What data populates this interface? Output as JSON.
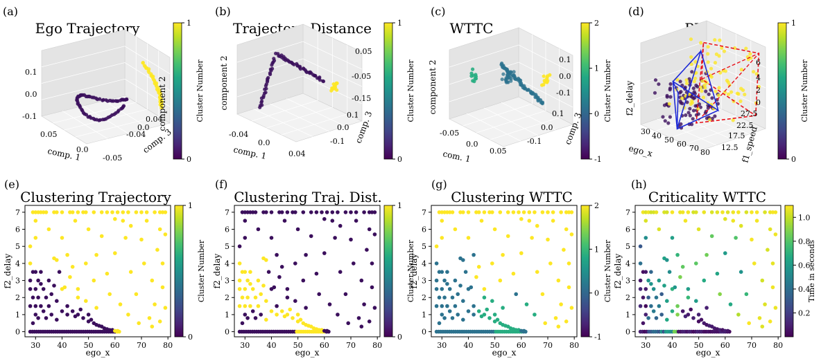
{
  "colors": {
    "viridis": [
      "#440154",
      "#482475",
      "#414487",
      "#355f8d",
      "#2a788e",
      "#21918c",
      "#22a884",
      "#44bf70",
      "#7ad151",
      "#bddf26",
      "#fde725"
    ],
    "cluster_purple": "#3b0f5c",
    "cluster_teal": "#2c728e",
    "cluster_green": "#27ad81",
    "cluster_yellow": "#fde725",
    "pha_red": "#e8131b",
    "pha_blue": "#1f2bd6"
  },
  "chart_data": [
    {
      "id": "a",
      "type": "scatter3d",
      "panel_label": "(a)",
      "title": "Ego Trajectory",
      "xlabel": "comp. 1",
      "ylabel": "comp. 3",
      "zlabel": "component 2",
      "x_ticks": [
        "0.05",
        "0.0",
        "-0.05"
      ],
      "y_ticks": [
        "0.04",
        "-0.04",
        "0.0"
      ],
      "z_ticks": [
        "0.1",
        "0.0",
        "-0.1"
      ],
      "colorbar": {
        "label": "Cluster Number",
        "min": 0,
        "max": 1,
        "ticks": [
          "1",
          "0"
        ]
      }
    },
    {
      "id": "b",
      "type": "scatter3d",
      "panel_label": "(b)",
      "title": "Trajectory Distance",
      "xlabel": "comp. 1",
      "ylabel": "comp. 3",
      "zlabel": "component 2",
      "x_ticks": [
        "-0.04",
        "0.0",
        "0.04"
      ],
      "y_ticks": [
        "0.1",
        "0.0",
        "-0.1"
      ],
      "z_ticks": [
        "0.05",
        "-0.05",
        "-0.15"
      ],
      "colorbar": {
        "label": "Cluster Number",
        "min": 0,
        "max": 1,
        "ticks": [
          "1",
          "0"
        ]
      }
    },
    {
      "id": "c",
      "type": "scatter3d",
      "panel_label": "(c)",
      "title": "WTTC",
      "xlabel": "com. 1",
      "ylabel": "comp. 3",
      "zlabel": "component 2",
      "x_ticks": [
        "-0.05",
        "0.0",
        "0.05"
      ],
      "y_ticks": [
        "0.1",
        "0.0",
        "-0.1"
      ],
      "z_ticks": [
        "0.1",
        "0.0",
        "-0.1"
      ],
      "colorbar": {
        "label": "Cluster Number",
        "min": -1,
        "max": 2,
        "ticks": [
          "2",
          "1",
          "0",
          "-1"
        ]
      }
    },
    {
      "id": "d",
      "type": "scatter3d",
      "panel_label": "(d)",
      "title": "PHA",
      "xlabel": "ego_x",
      "ylabel": "f1_speed",
      "zlabel": "f2_delay",
      "x_ticks": [
        "30",
        "40",
        "50",
        "60",
        "70",
        "80"
      ],
      "y_ticks": [
        "27.5",
        "22.5",
        "17.5",
        "12.5"
      ],
      "z_ticks": [
        "6",
        "4",
        "2",
        "0"
      ],
      "colorbar": {
        "label": "Cluster Number",
        "min": 0,
        "max": 1,
        "ticks": [
          "1",
          "0"
        ]
      }
    },
    {
      "id": "e",
      "type": "scatter",
      "panel_label": "(e)",
      "title": "Clustering Trajectory",
      "xlabel": "ego_x",
      "ylabel": "f2_delay",
      "xlim": [
        26,
        81
      ],
      "ylim": [
        -0.3,
        7.4
      ],
      "x_ticks": [
        "30",
        "40",
        "50",
        "60",
        "70",
        "80"
      ],
      "y_ticks": [
        "0",
        "1",
        "2",
        "3",
        "4",
        "5",
        "6",
        "7"
      ],
      "colorbar": {
        "label": "Cluster Number",
        "min": 0,
        "max": 1,
        "ticks": [
          "1",
          "0"
        ]
      },
      "mode": "trajectory"
    },
    {
      "id": "f",
      "type": "scatter",
      "panel_label": "(f)",
      "title": "Clustering Traj. Dist.",
      "xlabel": "ego_x",
      "ylabel": "f2_delay",
      "xlim": [
        26,
        81
      ],
      "ylim": [
        -0.3,
        7.4
      ],
      "x_ticks": [
        "30",
        "40",
        "50",
        "60",
        "70",
        "80"
      ],
      "y_ticks": [
        "0",
        "1",
        "2",
        "3",
        "4",
        "5",
        "6",
        "7"
      ],
      "colorbar": {
        "label": "Cluster Number",
        "min": 0,
        "max": 1,
        "ticks": [
          "1",
          "0"
        ]
      },
      "mode": "trajdist"
    },
    {
      "id": "g",
      "type": "scatter",
      "panel_label": "(g)",
      "title": "Clustering WTTC",
      "xlabel": "ego_x",
      "ylabel": "f2_delay",
      "xlim": [
        26,
        81
      ],
      "ylim": [
        -0.3,
        7.4
      ],
      "x_ticks": [
        "30",
        "40",
        "50",
        "60",
        "70",
        "80"
      ],
      "y_ticks": [
        "0",
        "1",
        "2",
        "3",
        "4",
        "5",
        "6",
        "7"
      ],
      "colorbar": {
        "label": "Cluster Number",
        "min": -1,
        "max": 2,
        "ticks": [
          "2",
          "1",
          "0",
          "-1"
        ]
      },
      "mode": "wttc"
    },
    {
      "id": "h",
      "type": "scatter",
      "panel_label": "(h)",
      "title": "Criticality WTTC",
      "xlabel": "ego_x",
      "ylabel": "f2_delay",
      "xlim": [
        26,
        81
      ],
      "ylim": [
        -0.3,
        7.4
      ],
      "x_ticks": [
        "30",
        "40",
        "50",
        "60",
        "70",
        "80"
      ],
      "y_ticks": [
        "0",
        "1",
        "2",
        "3",
        "4",
        "5",
        "6",
        "7"
      ],
      "colorbar": {
        "label": "Time in seconds",
        "min": 0.0,
        "max": 1.1,
        "ticks": [
          "1.0",
          "0.8",
          "0.6",
          "0.4",
          "0.2"
        ]
      },
      "mode": "criticality"
    }
  ]
}
